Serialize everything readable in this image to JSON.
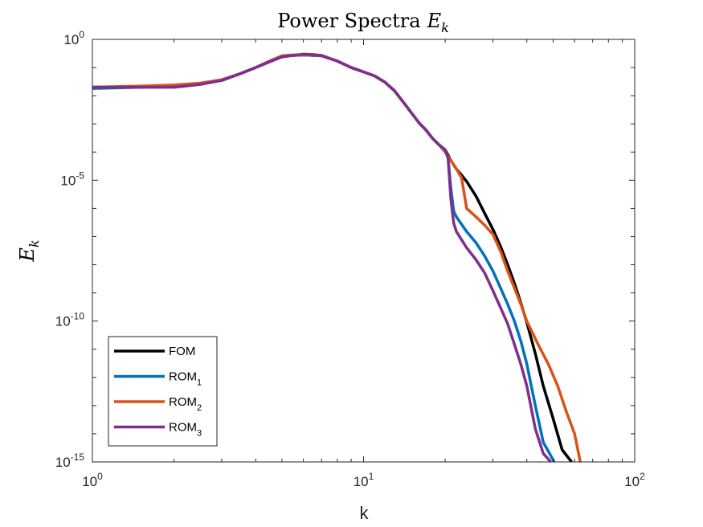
{
  "chart_data": {
    "type": "line",
    "title": "Power Spectra",
    "title_math": "E",
    "title_math_sub": "k",
    "xlabel": "k",
    "ylabel": "E",
    "ylabel_sub": "k",
    "xscale": "log",
    "yscale": "log",
    "xlim": [
      1,
      100
    ],
    "ylim": [
      1e-15,
      1
    ],
    "x_ticks": [
      {
        "base": "10",
        "exp": "0",
        "value": 1
      },
      {
        "base": "10",
        "exp": "1",
        "value": 10
      },
      {
        "base": "10",
        "exp": "2",
        "value": 100
      }
    ],
    "y_ticks": [
      {
        "base": "10",
        "exp": "0",
        "value": 1
      },
      {
        "base": "10",
        "exp": "-5",
        "value": 1e-05
      },
      {
        "base": "10",
        "exp": "-10",
        "value": 1e-10
      },
      {
        "base": "10",
        "exp": "-15",
        "value": 1e-15
      }
    ],
    "legend": {
      "placement": "bottom-left",
      "entries": [
        {
          "base": "FOM",
          "sub": ""
        },
        {
          "base": "ROM",
          "sub": "1"
        },
        {
          "base": "ROM",
          "sub": "2"
        },
        {
          "base": "ROM",
          "sub": "3"
        }
      ]
    },
    "series": [
      {
        "name": "FOM",
        "color": "#000000",
        "x": [
          1,
          1.5,
          2,
          2.5,
          3,
          3.5,
          4,
          4.5,
          5,
          5.5,
          6,
          6.5,
          7,
          8,
          9,
          10,
          11,
          12,
          13,
          14,
          15,
          16,
          17,
          18,
          19,
          20,
          21,
          22,
          23,
          24,
          26,
          28,
          30,
          32,
          34,
          36,
          38,
          40,
          43,
          46,
          50,
          54,
          58.5
        ],
        "y": [
          0.02,
          0.021,
          0.022,
          0.027,
          0.035,
          0.06,
          0.1,
          0.16,
          0.24,
          0.27,
          0.28,
          0.27,
          0.26,
          0.17,
          0.1,
          0.07,
          0.05,
          0.03,
          0.015,
          0.006,
          0.0025,
          0.0011,
          0.0006,
          0.0003,
          0.00018,
          0.00012,
          5e-05,
          2.5e-05,
          1.5e-05,
          9e-06,
          2.7e-06,
          6.5e-07,
          1.8e-07,
          4.5e-08,
          1e-08,
          2.2e-09,
          4.5e-10,
          9e-11,
          7e-12,
          5e-13,
          3.5e-14,
          2.7e-15,
          1e-15
        ]
      },
      {
        "name": "ROM_1",
        "color": "#0072BD",
        "x": [
          1,
          1.5,
          2,
          2.5,
          3,
          3.5,
          4,
          4.5,
          5,
          5.5,
          6,
          6.5,
          7,
          8,
          9,
          10,
          11,
          12,
          13,
          14,
          15,
          16,
          17,
          18,
          19,
          20,
          20.5,
          21,
          21.5,
          22,
          24,
          26,
          28,
          30,
          32,
          34,
          36,
          38,
          40,
          43,
          46,
          50.5
        ],
        "y": [
          0.018,
          0.02,
          0.022,
          0.027,
          0.035,
          0.06,
          0.1,
          0.16,
          0.24,
          0.27,
          0.28,
          0.27,
          0.26,
          0.17,
          0.1,
          0.07,
          0.05,
          0.03,
          0.015,
          0.006,
          0.0025,
          0.0011,
          0.0006,
          0.0003,
          0.00018,
          0.00012,
          6e-05,
          5e-06,
          8e-07,
          5e-07,
          1.5e-07,
          6e-08,
          2e-08,
          6e-09,
          1.5e-09,
          4e-10,
          1e-10,
          2e-11,
          3e-12,
          1e-13,
          5e-15,
          1e-15
        ]
      },
      {
        "name": "ROM_2",
        "color": "#D95319",
        "x": [
          1,
          1.5,
          2,
          2.5,
          3,
          3.5,
          4,
          4.5,
          5,
          5.5,
          6,
          6.5,
          7,
          8,
          9,
          10,
          11,
          12,
          13,
          14,
          15,
          16,
          17,
          18,
          19,
          20,
          21,
          22,
          23,
          24,
          26,
          28,
          30,
          32,
          34,
          36,
          38,
          40,
          44,
          48,
          52,
          56,
          60,
          63
        ],
        "y": [
          0.02,
          0.022,
          0.024,
          0.028,
          0.037,
          0.06,
          0.1,
          0.17,
          0.26,
          0.28,
          0.28,
          0.28,
          0.26,
          0.17,
          0.1,
          0.07,
          0.05,
          0.03,
          0.015,
          0.006,
          0.0025,
          0.0011,
          0.0006,
          0.0003,
          0.00018,
          0.0001,
          5e-05,
          2.5e-05,
          1.2e-05,
          1e-06,
          5e-07,
          2.5e-07,
          1.2e-07,
          3e-08,
          6e-09,
          1.5e-09,
          4e-10,
          1e-10,
          1.5e-11,
          3e-12,
          5e-13,
          6e-14,
          1e-14,
          1e-15
        ]
      },
      {
        "name": "ROM_3",
        "color": "#7E2F8E",
        "x": [
          1,
          1.5,
          2,
          2.5,
          3,
          3.5,
          4,
          4.5,
          5,
          5.5,
          6,
          6.5,
          7,
          8,
          9,
          10,
          11,
          12,
          13,
          14,
          15,
          16,
          17,
          18,
          19,
          20,
          20.5,
          21,
          21.5,
          22,
          24,
          26,
          28,
          30,
          32,
          34,
          36,
          38,
          40,
          43,
          46,
          49
        ],
        "y": [
          0.02,
          0.02,
          0.02,
          0.025,
          0.035,
          0.06,
          0.1,
          0.16,
          0.24,
          0.27,
          0.3,
          0.29,
          0.27,
          0.17,
          0.1,
          0.07,
          0.05,
          0.03,
          0.015,
          0.006,
          0.0025,
          0.0011,
          0.0006,
          0.0003,
          0.00018,
          0.00012,
          6e-05,
          2e-06,
          3e-07,
          1.5e-07,
          4e-08,
          1.5e-08,
          5e-09,
          1.2e-09,
          3e-10,
          8e-11,
          1.5e-11,
          3e-12,
          5e-13,
          1.5e-14,
          2e-15,
          1e-15
        ]
      }
    ]
  }
}
